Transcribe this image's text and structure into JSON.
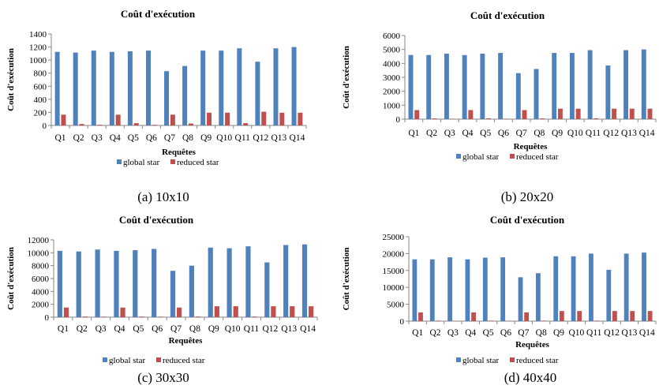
{
  "colors": {
    "global": "#4F81BD",
    "reduced": "#C0504D",
    "axis": "#868686"
  },
  "captions": [
    "(a) 10x10",
    "(b) 20x20",
    "(c) 30x30",
    "(d) 40x40"
  ],
  "chart_data": [
    {
      "type": "bar",
      "title": "Coût d'exécution",
      "xlabel": "Requêtes",
      "ylabel": "Coût d'exécution",
      "categories": [
        "Q1",
        "Q2",
        "Q3",
        "Q4",
        "Q5",
        "Q6",
        "Q7",
        "Q8",
        "Q9",
        "Q10",
        "Q11",
        "Q12",
        "Q13",
        "Q14"
      ],
      "ylim": [
        0,
        1400
      ],
      "yticks": [
        "0",
        "200",
        "400",
        "600",
        "800",
        "1000",
        "1200",
        "1400"
      ],
      "grid": false,
      "legend": "bottom",
      "series": [
        {
          "name": "global star",
          "values": [
            1125,
            1115,
            1145,
            1125,
            1135,
            1145,
            830,
            910,
            1145,
            1145,
            1180,
            975,
            1180,
            1200
          ]
        },
        {
          "name": "reduced star",
          "values": [
            165,
            22,
            10,
            165,
            35,
            10,
            165,
            30,
            195,
            195,
            35,
            210,
            195,
            195
          ]
        }
      ]
    },
    {
      "type": "bar",
      "title": "Coût d'exécution",
      "xlabel": "Requêtes",
      "ylabel": "Coût d'exécution",
      "categories": [
        "Q1",
        "Q2",
        "Q3",
        "Q4",
        "Q5",
        "Q6",
        "Q7",
        "Q8",
        "Q9",
        "Q10",
        "Q11",
        "Q12",
        "Q13",
        "Q14"
      ],
      "ylim": [
        0,
        6000
      ],
      "yticks": [
        "0",
        "1000",
        "2000",
        "3000",
        "4000",
        "5000",
        "6000"
      ],
      "grid": false,
      "legend": "bottom",
      "series": [
        {
          "name": "global star",
          "values": [
            4600,
            4600,
            4700,
            4600,
            4700,
            4750,
            3300,
            3600,
            4750,
            4750,
            4950,
            3850,
            4950,
            5000
          ]
        },
        {
          "name": "reduced star",
          "values": [
            650,
            50,
            30,
            650,
            60,
            30,
            650,
            50,
            750,
            750,
            60,
            750,
            750,
            750
          ]
        }
      ]
    },
    {
      "type": "bar",
      "title": "Coût d'exécution",
      "xlabel": "Requêtes",
      "ylabel": "Coût d'exécution",
      "categories": [
        "Q1",
        "Q2",
        "Q3",
        "Q4",
        "Q5",
        "Q6",
        "Q7",
        "Q8",
        "Q9",
        "Q10",
        "Q11",
        "Q12",
        "Q13",
        "Q14"
      ],
      "ylim": [
        0,
        12000
      ],
      "yticks": [
        "0",
        "2000",
        "4000",
        "6000",
        "8000",
        "10000",
        "12000"
      ],
      "grid": false,
      "legend": "bottom",
      "series": [
        {
          "name": "global star",
          "values": [
            10300,
            10200,
            10500,
            10300,
            10400,
            10600,
            7200,
            8000,
            10800,
            10700,
            11000,
            8500,
            11200,
            11300
          ]
        },
        {
          "name": "reduced star",
          "values": [
            1500,
            100,
            80,
            1500,
            100,
            80,
            1500,
            100,
            1700,
            1700,
            100,
            1700,
            1700,
            1700
          ]
        }
      ]
    },
    {
      "type": "bar",
      "title": "Coût d'exécution",
      "xlabel": "Requêtes",
      "ylabel": "Coût d'exécution",
      "categories": [
        "Q1",
        "Q2",
        "Q3",
        "Q4",
        "Q5",
        "Q6",
        "Q7",
        "Q8",
        "Q9",
        "Q10",
        "Q11",
        "Q12",
        "Q13",
        "Q14"
      ],
      "ylim": [
        0,
        25000
      ],
      "yticks": [
        "0",
        "5000",
        "10000",
        "15000",
        "20000",
        "25000"
      ],
      "grid": false,
      "legend": "bottom",
      "series": [
        {
          "name": "global star",
          "values": [
            18300,
            18300,
            18900,
            18300,
            18800,
            18900,
            13000,
            14200,
            19200,
            19200,
            20000,
            15200,
            20000,
            20300
          ]
        },
        {
          "name": "reduced star",
          "values": [
            2600,
            150,
            100,
            2600,
            150,
            100,
            2600,
            150,
            3000,
            3000,
            150,
            3000,
            3000,
            3000
          ]
        }
      ]
    }
  ]
}
